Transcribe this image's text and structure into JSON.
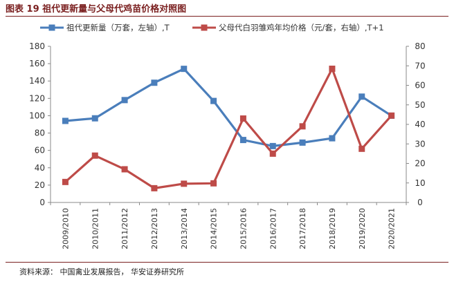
{
  "header": {
    "title": "图表 19  祖代更新量与父母代鸡苗价格对照图"
  },
  "footer": {
    "source": "资料来源：  中国禽业发展报告，  华安证券研究所"
  },
  "chart_data": {
    "type": "line",
    "categories": [
      "2009/2010",
      "2010/2011",
      "2011/2012",
      "2012/2013",
      "2013/2014",
      "2014/2015",
      "2015/2016",
      "2016/2017",
      "2017/2018",
      "2018/2019",
      "2019/2020",
      "2020/2021"
    ],
    "series": [
      {
        "name": "祖代更新量（万套，左轴）,T",
        "axis": "left",
        "color": "#4a7ebb",
        "marker": "square",
        "values": [
          94,
          97,
          118,
          138,
          154,
          117,
          72,
          65,
          69,
          74,
          122,
          100
        ]
      },
      {
        "name": "父母代白羽雏鸡年均价格（元/套，右轴）,T+1",
        "axis": "right",
        "color": "#be4b48",
        "marker": "square",
        "values": [
          10.5,
          24,
          17,
          7.3,
          9.6,
          9.8,
          43,
          25,
          39,
          68.5,
          27.5,
          44.5
        ]
      }
    ],
    "y_left": {
      "range": [
        0,
        180
      ],
      "ticks": [
        "0",
        "20",
        "40",
        "60",
        "80",
        "100",
        "120",
        "140",
        "160",
        "180"
      ]
    },
    "y_right": {
      "range": [
        0,
        80
      ],
      "ticks": [
        "0",
        "10",
        "20",
        "30",
        "40",
        "50",
        "60",
        "70",
        "80"
      ]
    },
    "legend_position": "top",
    "grid": false
  }
}
